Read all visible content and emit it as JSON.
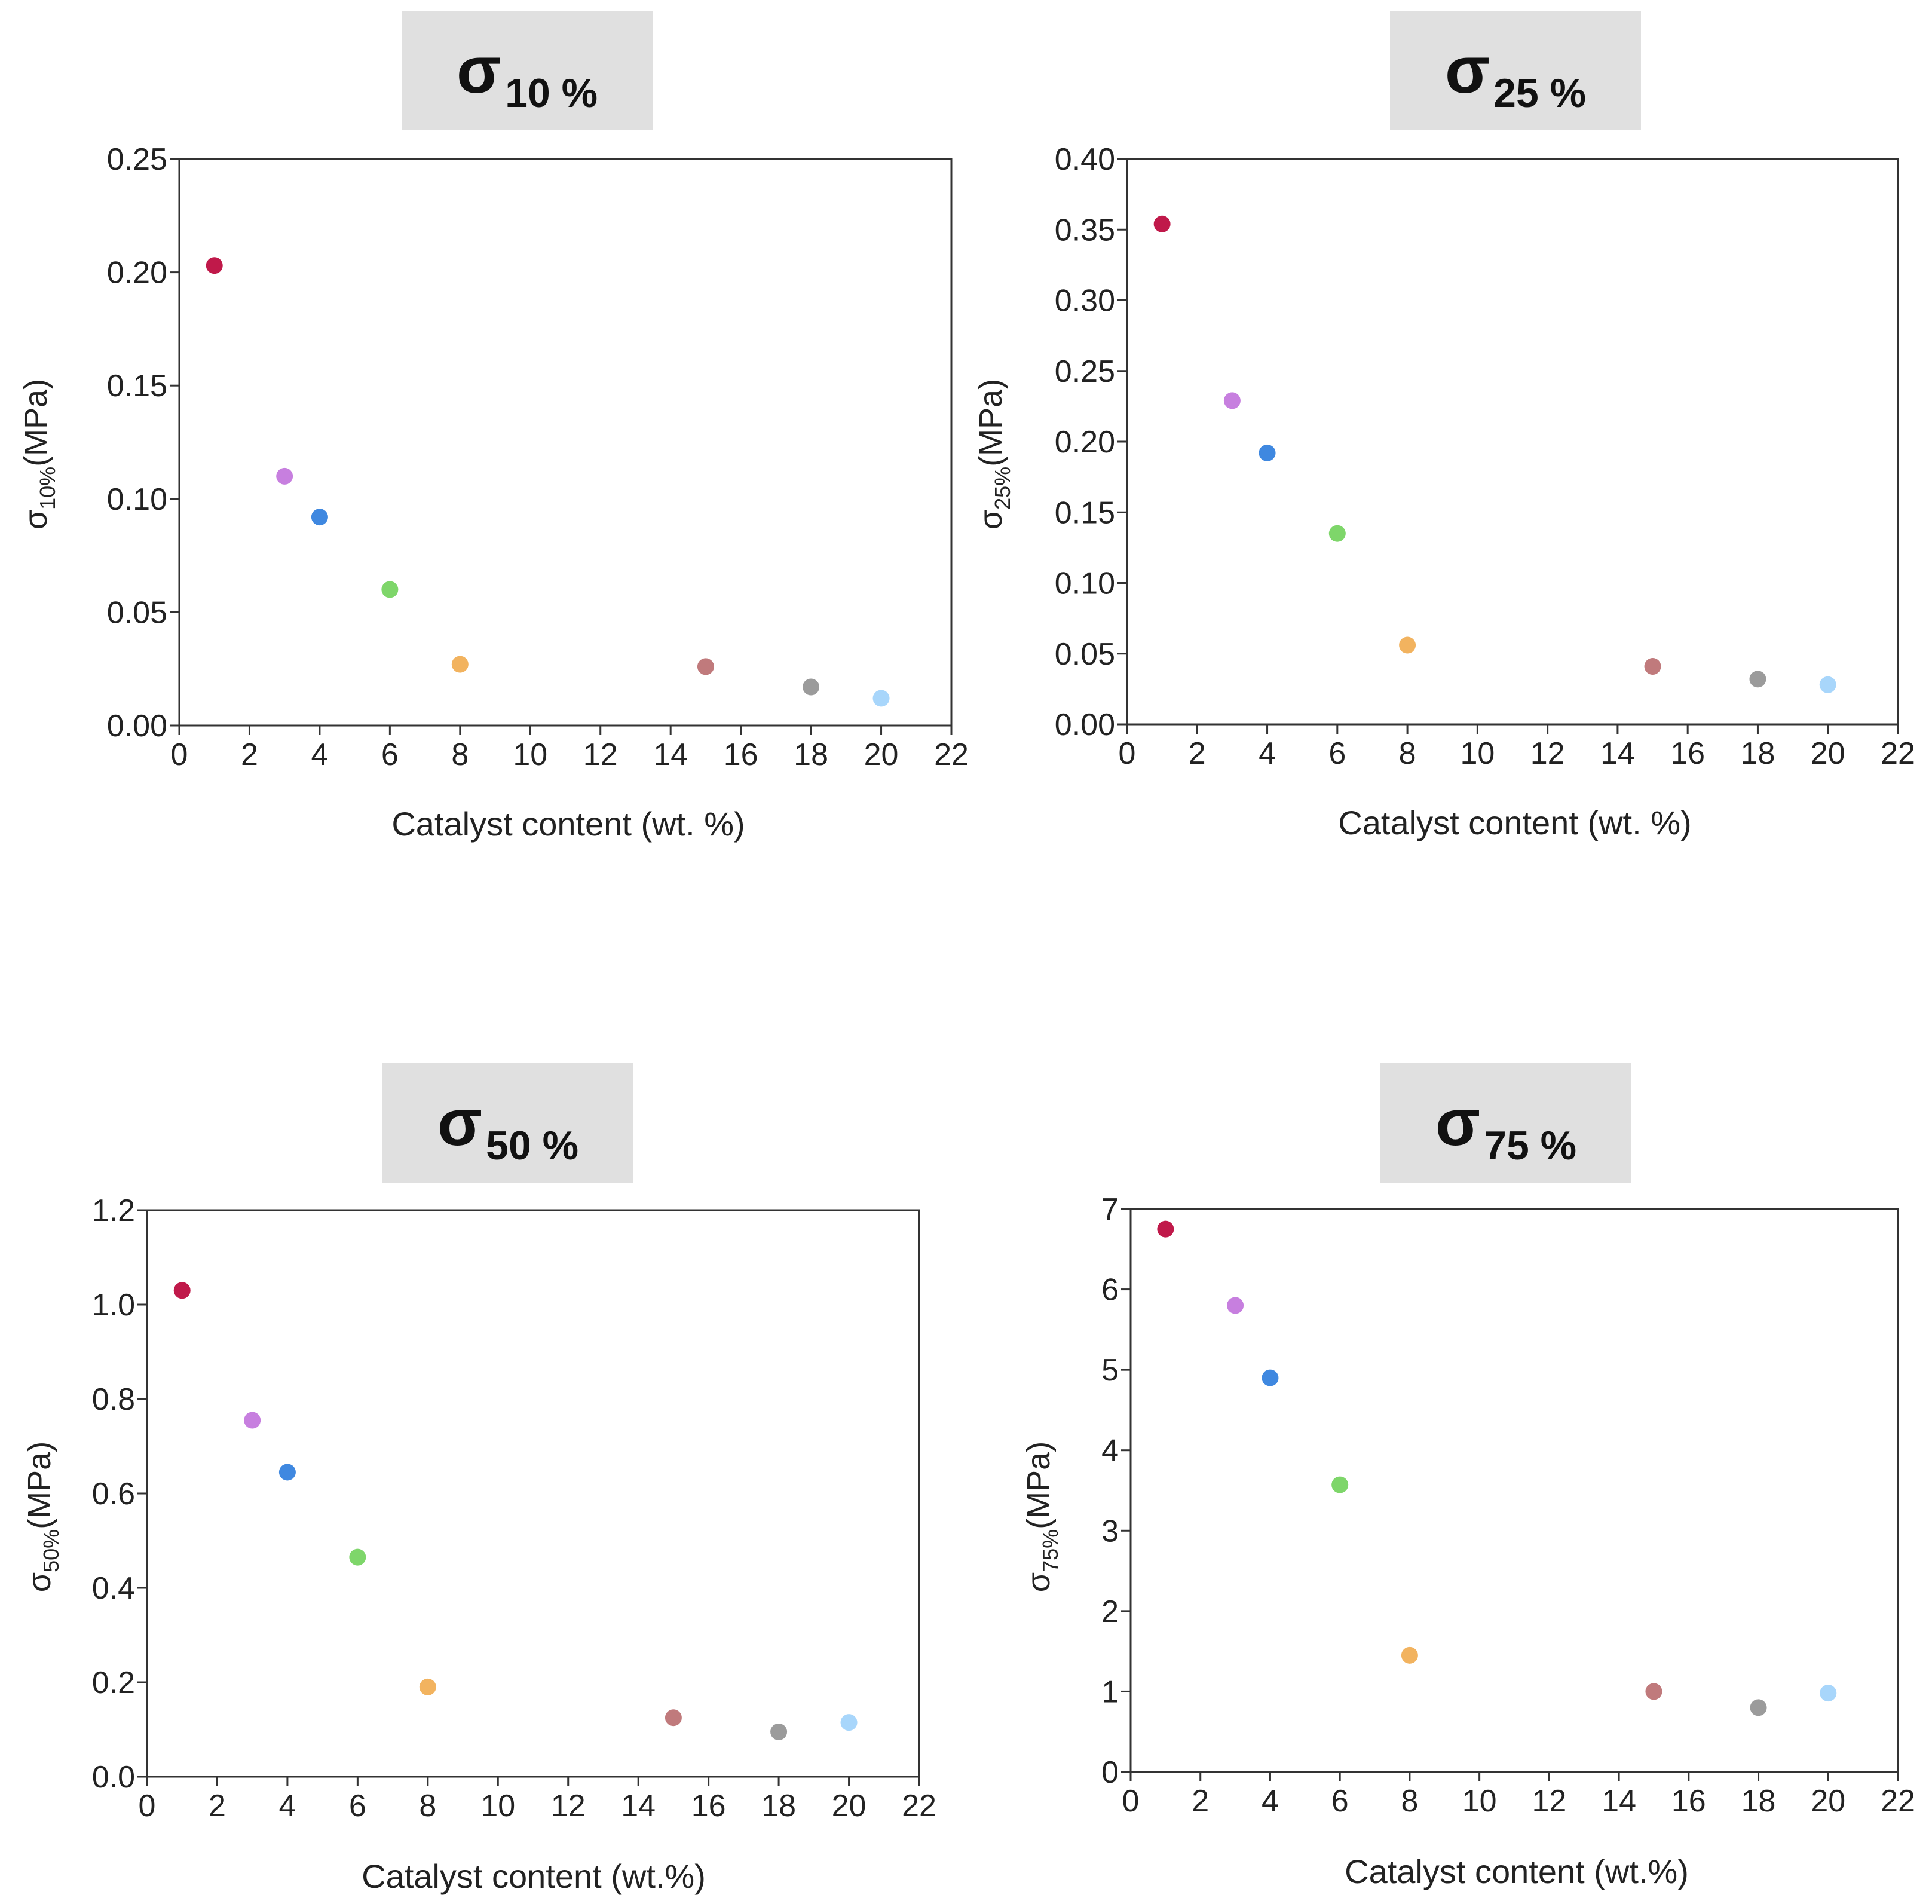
{
  "chart_data": [
    {
      "type": "scatter",
      "title": {
        "symbol": "σ",
        "subscript": "10 %"
      },
      "ylabel": {
        "symbol": "σ",
        "subscript": "10%",
        "unit": "(MPa)"
      },
      "xlabel": "Catalyst content (wt. %)",
      "xlim": [
        0,
        22
      ],
      "ylim": [
        0,
        0.25
      ],
      "xticks": [
        "0",
        "2",
        "4",
        "6",
        "8",
        "10",
        "12",
        "14",
        "16",
        "18",
        "20",
        "22"
      ],
      "yticks": [
        "0.00",
        "0.05",
        "0.10",
        "0.15",
        "0.20",
        "0.25"
      ],
      "x": [
        1,
        3,
        4,
        6,
        8,
        15,
        18,
        20
      ],
      "values": [
        0.203,
        0.11,
        0.092,
        0.06,
        0.027,
        0.026,
        0.017,
        0.012
      ]
    },
    {
      "type": "scatter",
      "title": {
        "symbol": "σ",
        "subscript": "25 %"
      },
      "ylabel": {
        "symbol": "σ",
        "subscript": "25%",
        "unit": "(MPa)"
      },
      "xlabel": "Catalyst content (wt. %)",
      "xlim": [
        0,
        22
      ],
      "ylim": [
        0,
        0.4
      ],
      "xticks": [
        "0",
        "2",
        "4",
        "6",
        "8",
        "10",
        "12",
        "14",
        "16",
        "18",
        "20",
        "22"
      ],
      "yticks": [
        "0.00",
        "0.05",
        "0.10",
        "0.15",
        "0.20",
        "0.25",
        "0.30",
        "0.35",
        "0.40"
      ],
      "x": [
        1,
        3,
        4,
        6,
        8,
        15,
        18,
        20
      ],
      "values": [
        0.354,
        0.229,
        0.192,
        0.135,
        0.056,
        0.041,
        0.032,
        0.028
      ]
    },
    {
      "type": "scatter",
      "title": {
        "symbol": "σ",
        "subscript": "50 %"
      },
      "ylabel": {
        "symbol": "σ",
        "subscript": "50%",
        "unit": "(MPa)"
      },
      "xlabel": "Catalyst content (wt.%)",
      "xlim": [
        0,
        22
      ],
      "ylim": [
        0,
        1.2
      ],
      "xticks": [
        "0",
        "2",
        "4",
        "6",
        "8",
        "10",
        "12",
        "14",
        "16",
        "18",
        "20",
        "22"
      ],
      "yticks": [
        "0.0",
        "0.2",
        "0.4",
        "0.6",
        "0.8",
        "1.0",
        "1.2"
      ],
      "x": [
        1,
        3,
        4,
        6,
        8,
        15,
        18,
        20
      ],
      "values": [
        1.03,
        0.755,
        0.645,
        0.465,
        0.19,
        0.125,
        0.095,
        0.115
      ]
    },
    {
      "type": "scatter",
      "title": {
        "symbol": "σ",
        "subscript": "75 %"
      },
      "ylabel": {
        "symbol": "σ",
        "subscript": "75%",
        "unit": "(MPa)"
      },
      "xlabel": "Catalyst content (wt.%)",
      "xlim": [
        0,
        22
      ],
      "ylim": [
        0,
        7
      ],
      "xticks": [
        "0",
        "2",
        "4",
        "6",
        "8",
        "10",
        "12",
        "14",
        "16",
        "18",
        "20",
        "22"
      ],
      "yticks": [
        "0",
        "1",
        "2",
        "3",
        "4",
        "5",
        "6",
        "7"
      ],
      "x": [
        1,
        3,
        4,
        6,
        8,
        15,
        18,
        20
      ],
      "values": [
        6.75,
        5.8,
        4.9,
        3.57,
        1.45,
        1.0,
        0.8,
        0.98
      ]
    }
  ],
  "point_colors": [
    "#c0194a",
    "#c77fdf",
    "#3f88e0",
    "#7ed66a",
    "#f2b35f",
    "#c07a7c",
    "#9b9b9b",
    "#a8d6fb"
  ]
}
